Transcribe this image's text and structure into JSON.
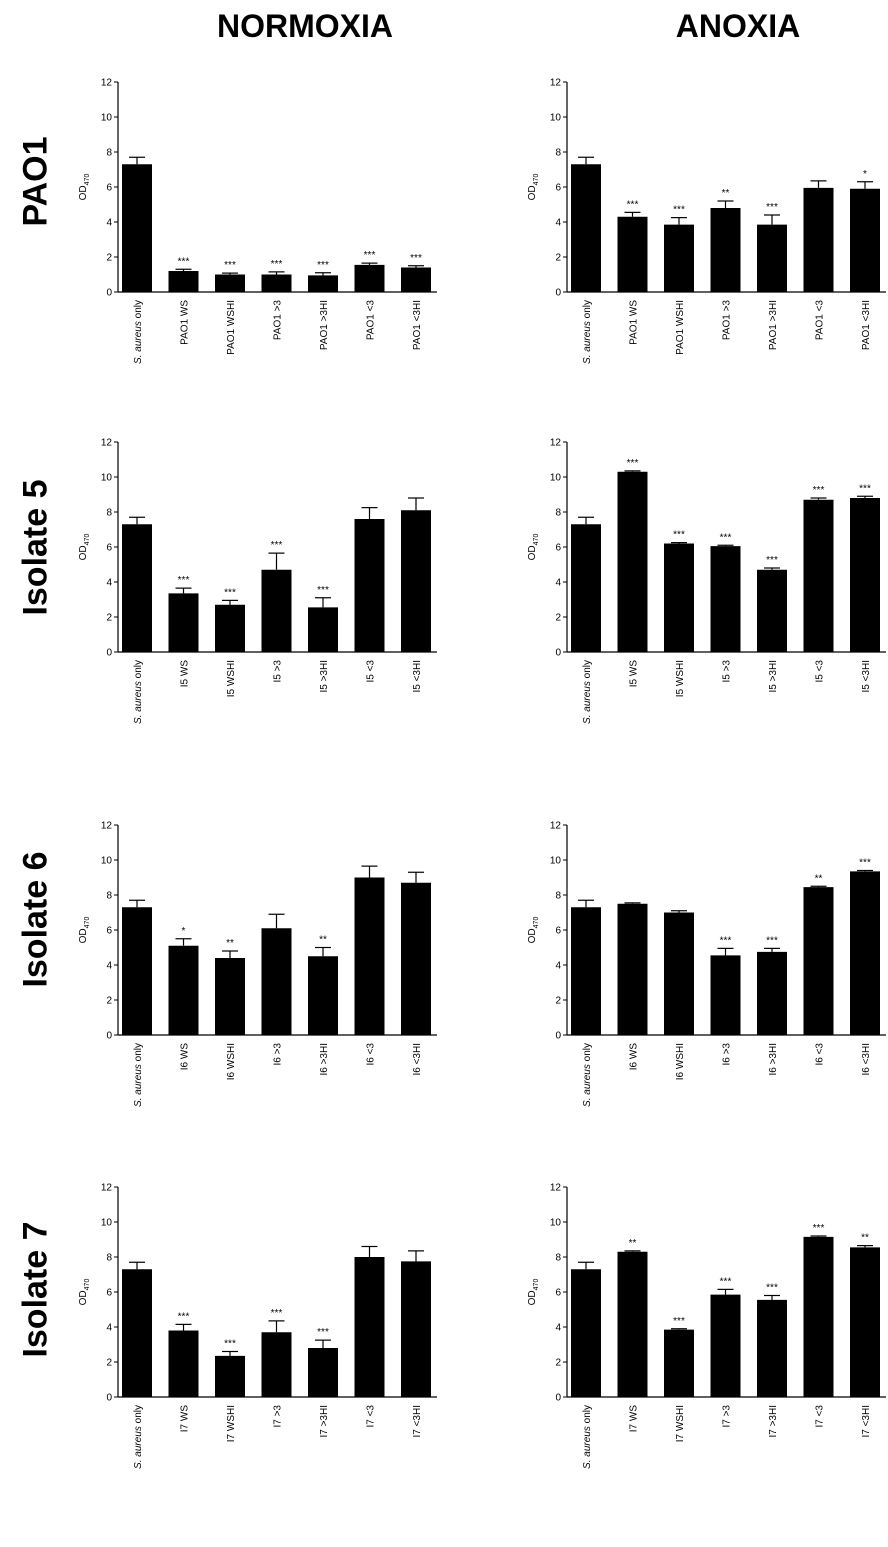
{
  "headers": {
    "columns": [
      "NORMOXIA",
      "ANOXIA"
    ],
    "rows": [
      "PAO1",
      "Isolate 5",
      "Isolate 6",
      "Isolate 7"
    ]
  },
  "chart_data": [
    {
      "type": "bar",
      "condition": "NORMOXIA",
      "strain": "PAO1",
      "ylabel": "OD470",
      "ylim": [
        0,
        12
      ],
      "yticks": [
        0,
        2,
        4,
        6,
        8,
        10,
        12
      ],
      "categories": [
        "S. aureus only",
        "PAO1 WS",
        "PAO1 WSHI",
        "PAO1 >3",
        "PAO1 >3HI",
        "PAO1 <3",
        "PAO1 <3HI"
      ],
      "values": [
        7.3,
        1.2,
        1.0,
        1.0,
        0.95,
        1.55,
        1.4
      ],
      "errors": [
        0.4,
        0.1,
        0.08,
        0.15,
        0.15,
        0.1,
        0.1
      ],
      "significance": [
        "",
        "***",
        "***",
        "***",
        "***",
        "***",
        "***"
      ]
    },
    {
      "type": "bar",
      "condition": "ANOXIA",
      "strain": "PAO1",
      "ylabel": "OD470",
      "ylim": [
        0,
        12
      ],
      "yticks": [
        0,
        2,
        4,
        6,
        8,
        10,
        12
      ],
      "categories": [
        "S. aureus only",
        "PAO1 WS",
        "PAO1 WSHI",
        "PAO1 >3",
        "PAO1 >3HI",
        "PAO1 <3",
        "PAO1 <3HI"
      ],
      "values": [
        7.3,
        4.3,
        3.85,
        4.8,
        3.85,
        5.95,
        5.9
      ],
      "errors": [
        0.4,
        0.25,
        0.4,
        0.4,
        0.55,
        0.4,
        0.4
      ],
      "significance": [
        "",
        "***",
        "***",
        "**",
        "***",
        "",
        "*"
      ]
    },
    {
      "type": "bar",
      "condition": "NORMOXIA",
      "strain": "Isolate 5",
      "ylabel": "OD470",
      "ylim": [
        0,
        12
      ],
      "yticks": [
        0,
        2,
        4,
        6,
        8,
        10,
        12
      ],
      "categories": [
        "S. aureus only",
        "I5 WS",
        "I5 WSHI",
        "I5 >3",
        "I5 >3HI",
        "I5 <3",
        "I5 <3HI"
      ],
      "values": [
        7.3,
        3.35,
        2.7,
        4.7,
        2.55,
        7.6,
        8.1
      ],
      "errors": [
        0.4,
        0.3,
        0.25,
        0.95,
        0.55,
        0.65,
        0.7
      ],
      "significance": [
        "",
        "***",
        "***",
        "***",
        "***",
        "",
        ""
      ]
    },
    {
      "type": "bar",
      "condition": "ANOXIA",
      "strain": "Isolate 5",
      "ylabel": "OD470",
      "ylim": [
        0,
        12
      ],
      "yticks": [
        0,
        2,
        4,
        6,
        8,
        10,
        12
      ],
      "categories": [
        "S. aureus only",
        "I5 WS",
        "I5 WSHI",
        "I5 >3",
        "I5 >3HI",
        "I5 <3",
        "I5 <3HI"
      ],
      "values": [
        7.3,
        10.3,
        6.2,
        6.05,
        4.7,
        8.7,
        8.8
      ],
      "errors": [
        0.4,
        0.05,
        0.05,
        0.05,
        0.1,
        0.1,
        0.1
      ],
      "significance": [
        "",
        "***",
        "***",
        "***",
        "***",
        "***",
        "***"
      ]
    },
    {
      "type": "bar",
      "condition": "NORMOXIA",
      "strain": "Isolate 6",
      "ylabel": "OD470",
      "ylim": [
        0,
        12
      ],
      "yticks": [
        0,
        2,
        4,
        6,
        8,
        10,
        12
      ],
      "categories": [
        "S. aureus only",
        "I6 WS",
        "I6 WSHI",
        "I6 >3",
        "I6 >3HI",
        "I6 <3",
        "I6 <3HI"
      ],
      "values": [
        7.3,
        5.1,
        4.4,
        6.1,
        4.5,
        9.0,
        8.7
      ],
      "errors": [
        0.4,
        0.4,
        0.4,
        0.8,
        0.5,
        0.65,
        0.6
      ],
      "significance": [
        "",
        "*",
        "**",
        "",
        "**",
        "",
        ""
      ]
    },
    {
      "type": "bar",
      "condition": "ANOXIA",
      "strain": "Isolate 6",
      "ylabel": "OD470",
      "ylim": [
        0,
        12
      ],
      "yticks": [
        0,
        2,
        4,
        6,
        8,
        10,
        12
      ],
      "categories": [
        "S. aureus only",
        "I6 WS",
        "I6 WSHI",
        "I6 >3",
        "I6 >3HI",
        "I6 <3",
        "I6 <3HI"
      ],
      "values": [
        7.3,
        7.5,
        7.0,
        4.55,
        4.75,
        8.45,
        9.35
      ],
      "errors": [
        0.4,
        0.05,
        0.1,
        0.4,
        0.2,
        0.05,
        0.05
      ],
      "significance": [
        "",
        "",
        "",
        "***",
        "***",
        "**",
        "***"
      ]
    },
    {
      "type": "bar",
      "condition": "NORMOXIA",
      "strain": "Isolate 7",
      "ylabel": "OD470",
      "ylim": [
        0,
        12
      ],
      "yticks": [
        0,
        2,
        4,
        6,
        8,
        10,
        12
      ],
      "categories": [
        "S. aureus only",
        "I7 WS",
        "I7 WSHI",
        "I7 >3",
        "I7 >3HI",
        "I7 <3",
        "I7 <3HI"
      ],
      "values": [
        7.3,
        3.8,
        2.35,
        3.7,
        2.8,
        8.0,
        7.75
      ],
      "errors": [
        0.4,
        0.35,
        0.25,
        0.65,
        0.45,
        0.6,
        0.6
      ],
      "significance": [
        "",
        "***",
        "***",
        "***",
        "***",
        "",
        ""
      ]
    },
    {
      "type": "bar",
      "condition": "ANOXIA",
      "strain": "Isolate 7",
      "ylabel": "OD470",
      "ylim": [
        0,
        12
      ],
      "yticks": [
        0,
        2,
        4,
        6,
        8,
        10,
        12
      ],
      "categories": [
        "S. aureus only",
        "I7 WS",
        "I7 WSHI",
        "I7 >3",
        "I7 >3HI",
        "I7 <3",
        "I7 <3HI"
      ],
      "values": [
        7.3,
        8.3,
        3.85,
        5.85,
        5.55,
        9.15,
        8.55
      ],
      "errors": [
        0.4,
        0.05,
        0.05,
        0.3,
        0.25,
        0.05,
        0.1
      ],
      "significance": [
        "",
        "**",
        "***",
        "***",
        "***",
        "***",
        "**"
      ]
    }
  ]
}
